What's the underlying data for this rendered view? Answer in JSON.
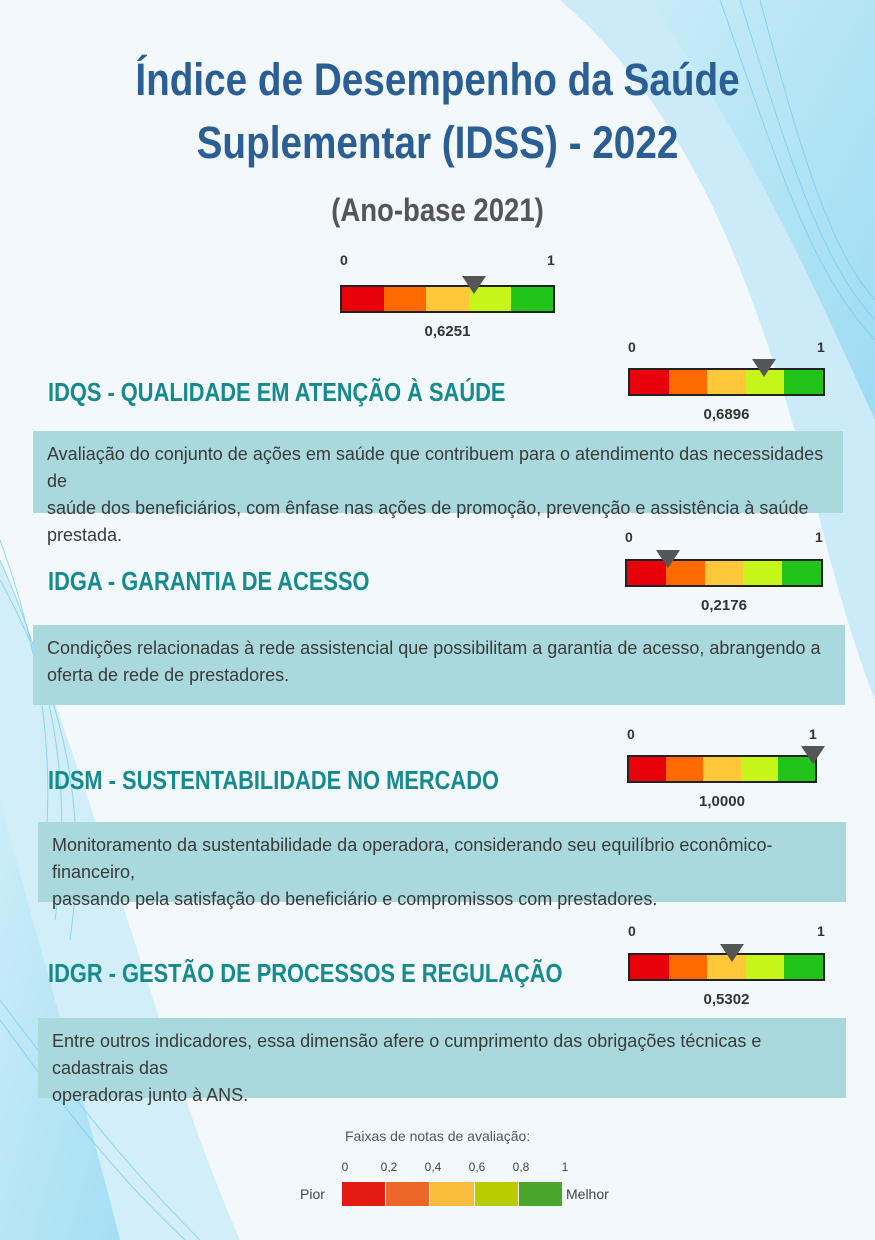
{
  "title": {
    "line1": "Índice de Desempenho da Saúde",
    "line2": "Suplementar (IDSS) - 2022",
    "subtitle": "(Ano-base 2021)"
  },
  "gauge_scale": {
    "min_label": "0",
    "max_label": "1"
  },
  "gauge_colors": [
    "#e8000b",
    "#ff6a00",
    "#ffc83a",
    "#c6f51a",
    "#22c41c"
  ],
  "overall": {
    "score": 0.6251,
    "score_label": "0,6251"
  },
  "dimensions": [
    {
      "heading": "IDQS - QUALIDADE EM ATENÇÃO À SAÚDE",
      "score": 0.6896,
      "score_label": "0,6896",
      "desc_lines": [
        "Avaliação do conjunto de ações em saúde que contribuem para o atendimento das necessidades de",
        "saúde dos beneficiários, com ênfase nas ações de promoção, prevenção e assistência à saúde prestada."
      ]
    },
    {
      "heading": "IDGA - GARANTIA DE ACESSO",
      "score": 0.2176,
      "score_label": "0,2176",
      "desc_lines": [
        "Condições relacionadas à rede assistencial que possibilitam a garantia de acesso, abrangendo a",
        "oferta de rede de prestadores."
      ]
    },
    {
      "heading": "IDSM - SUSTENTABILIDADE NO MERCADO",
      "score": 1.0,
      "score_label": "1,0000",
      "desc_lines": [
        "Monitoramento da sustentabilidade da operadora, considerando seu equilíbrio econômico-financeiro,",
        "passando pela satisfação do beneficiário e compromissos com prestadores."
      ]
    },
    {
      "heading": "IDGR - GESTÃO DE PROCESSOS E REGULAÇÃO",
      "score": 0.5302,
      "score_label": "0,5302",
      "desc_lines": [
        "Entre outros indicadores, essa dimensão afere o cumprimento das obrigações técnicas e cadastrais das",
        "operadoras junto à ANS."
      ]
    }
  ],
  "legend": {
    "title": "Faixas de notas de avaliação:",
    "ticks": [
      "0",
      "0,2",
      "0,4",
      "0,6",
      "0,8",
      "1"
    ],
    "low_label": "Pior",
    "high_label": "Melhor",
    "colors": [
      "#e31b13",
      "#ec6529",
      "#f8bd3c",
      "#b8cc00",
      "#4aa52d"
    ]
  }
}
